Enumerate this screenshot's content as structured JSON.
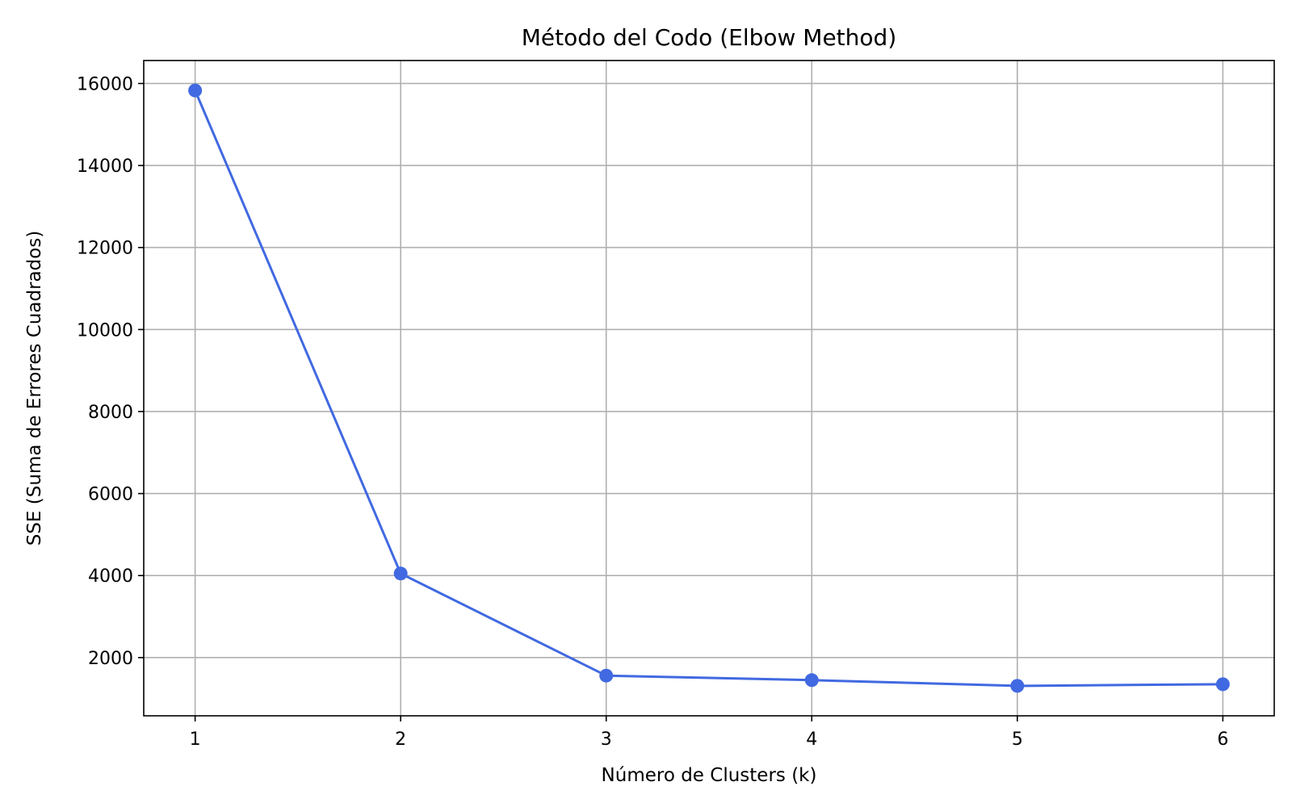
{
  "chart_data": {
    "type": "line",
    "title": "Método del Codo (Elbow Method)",
    "xlabel": "Número de Clusters (k)",
    "ylabel": "SSE (Suma de Errores Cuadrados)",
    "x": [
      1,
      2,
      3,
      4,
      5,
      6
    ],
    "series": [
      {
        "values": [
          15830,
          4050,
          1560,
          1450,
          1310,
          1350
        ],
        "color": "#4169e1",
        "marker": "circle"
      }
    ],
    "xlim": [
      0.75,
      6.25
    ],
    "ylim": [
      580,
      16560
    ],
    "xticks": [
      1,
      2,
      3,
      4,
      5,
      6
    ],
    "xtick_labels": [
      "1",
      "2",
      "3",
      "4",
      "5",
      "6"
    ],
    "yticks": [
      2000,
      4000,
      6000,
      8000,
      10000,
      12000,
      14000,
      16000
    ],
    "ytick_labels": [
      "2000",
      "4000",
      "6000",
      "8000",
      "10000",
      "12000",
      "14000",
      "16000"
    ],
    "grid": true,
    "legend": "none"
  }
}
